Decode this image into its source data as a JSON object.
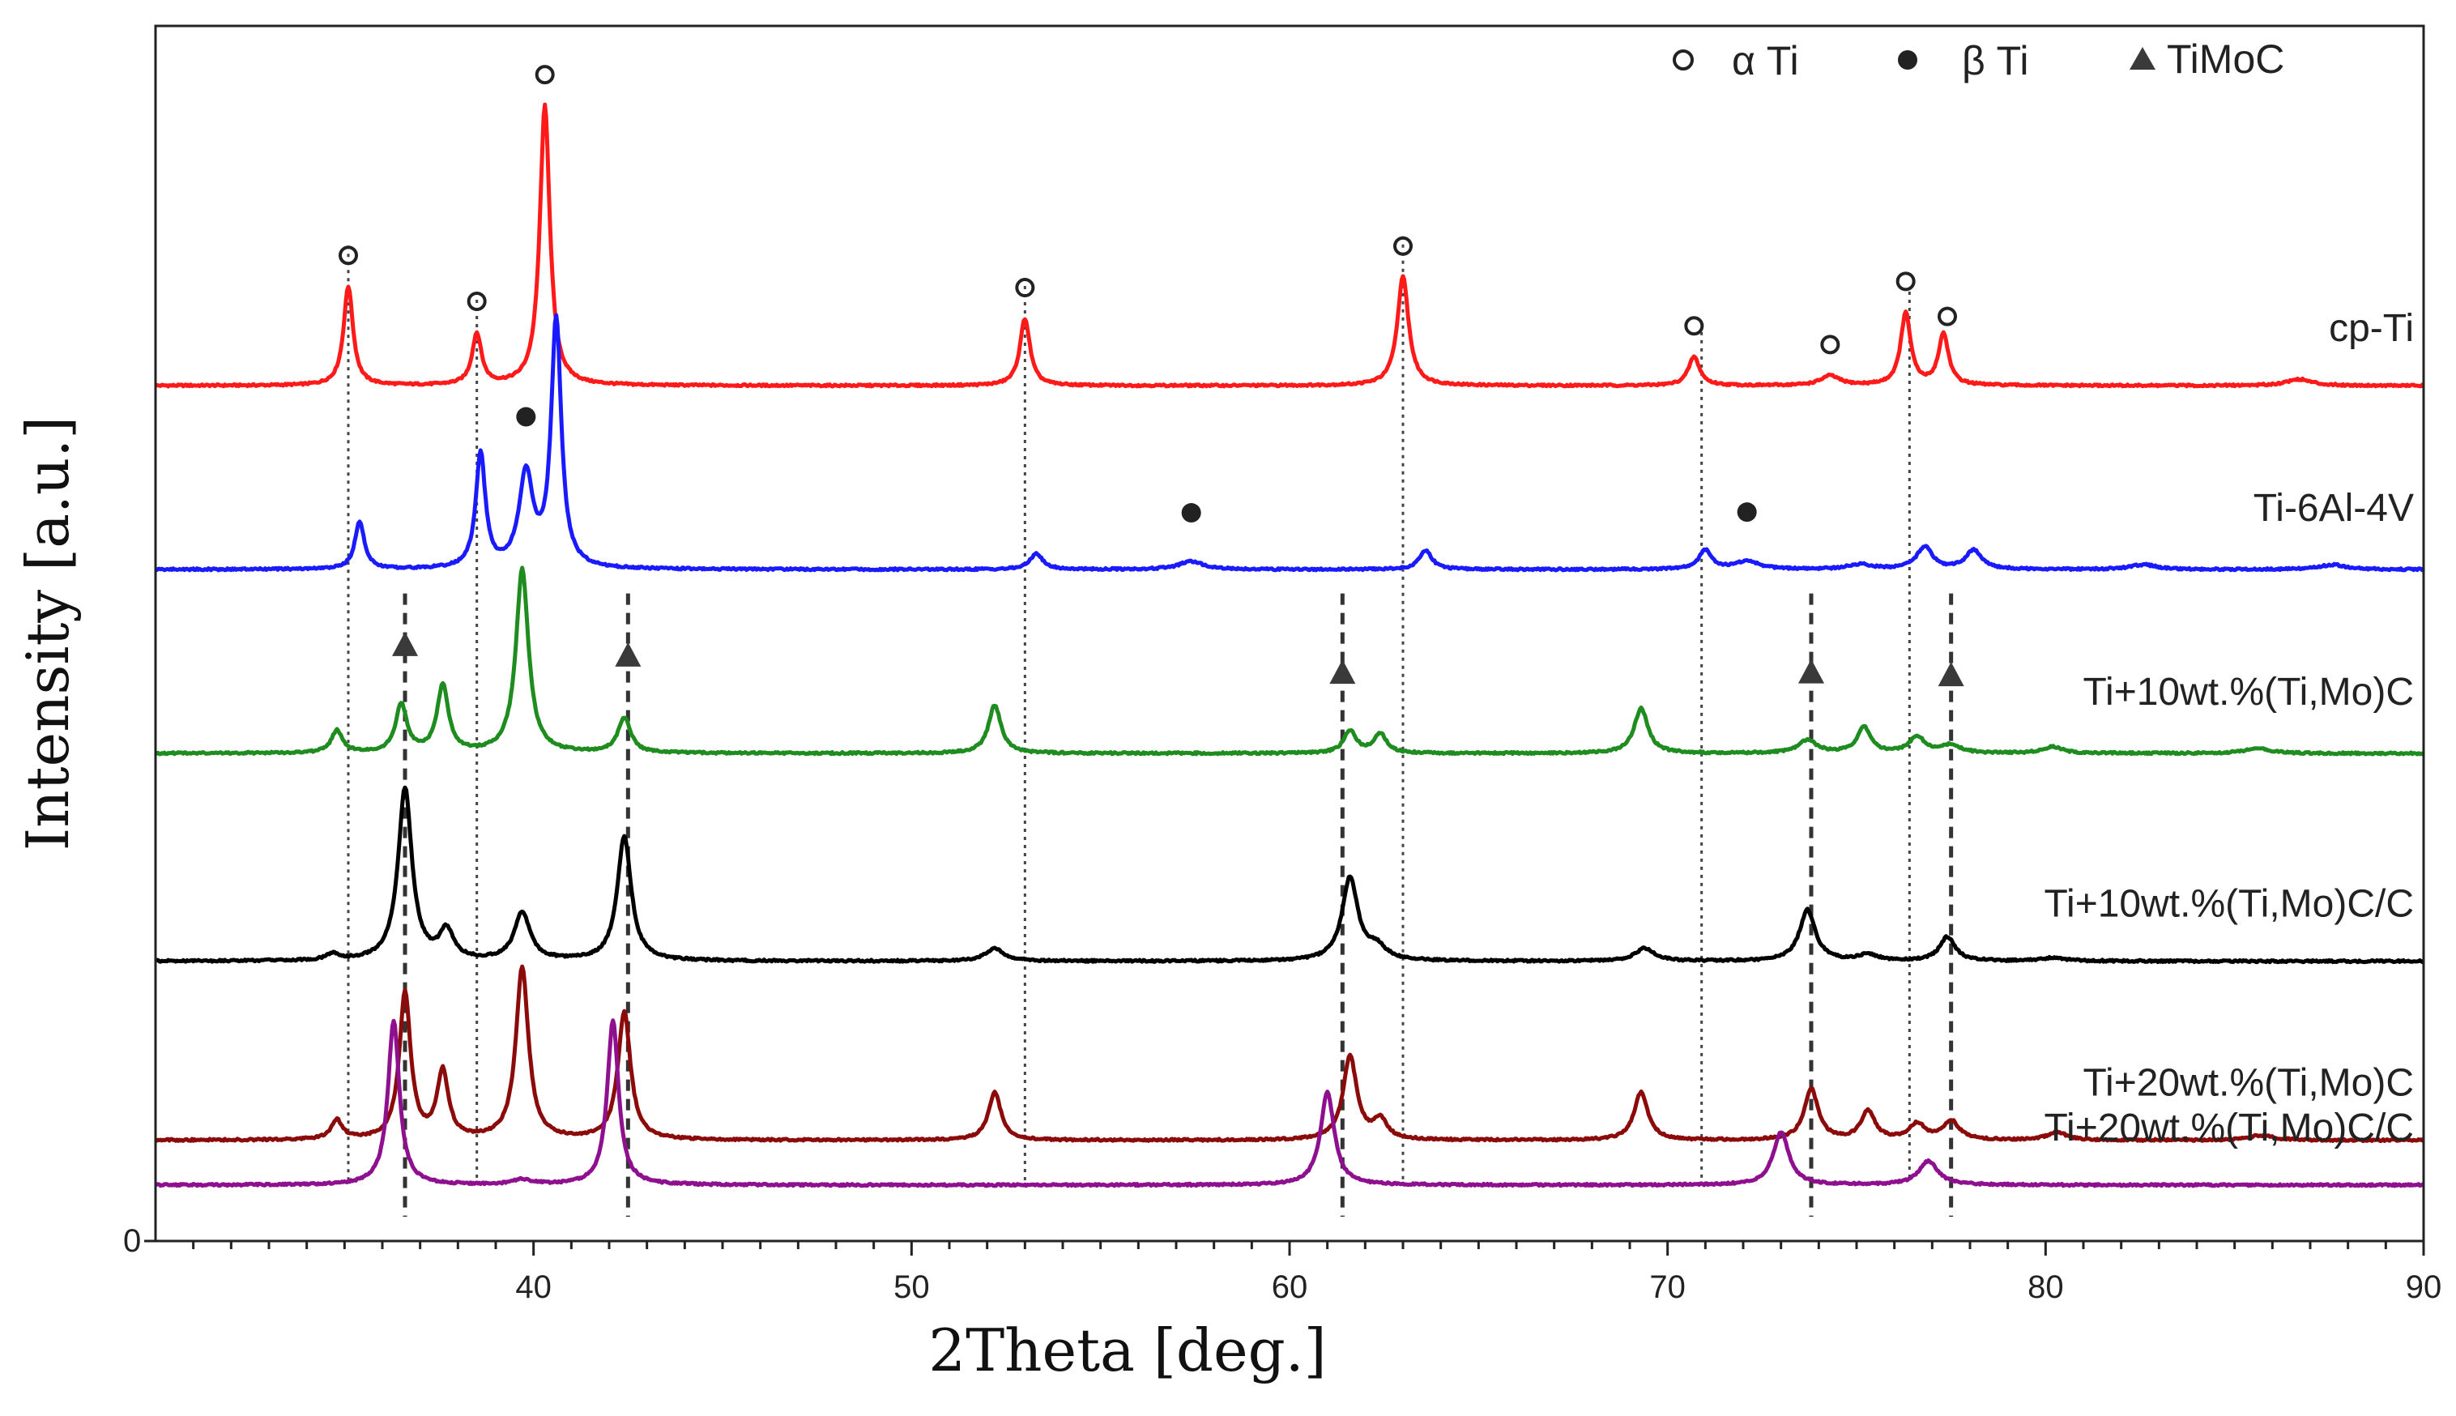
{
  "colors": {
    "cp-Ti": "#ff1a1a",
    "Ti-6Al-4V": "#1a1aff",
    "Ti+10wt.%(Ti,Mo)C": "#1f8c1f",
    "Ti+10wt.%(Ti,Mo)C/C": "#000000",
    "Ti+20wt.%(Ti,Mo)C": "#8b0b0b",
    "Ti+20wt.%(Ti,Mo)C/C": "#8e108e",
    "marker": "#222222"
  },
  "chart_data": {
    "type": "line",
    "title": "",
    "xlabel": "2Theta [deg.]",
    "ylabel": "Intensity [a.u.]",
    "xlim": [
      30,
      90
    ],
    "xticks": [
      40,
      50,
      60,
      70,
      80,
      90
    ],
    "xtick_labels": [
      "40",
      "50",
      "60",
      "70",
      "80",
      "90"
    ],
    "y_zero_label": "0",
    "legend": {
      "placement": "top-right",
      "entries": [
        {
          "marker": "open-circle",
          "label": "α Ti"
        },
        {
          "marker": "filled-circle",
          "label": "β Ti"
        },
        {
          "marker": "triangle",
          "label": "TiMoC"
        }
      ]
    },
    "series": [
      {
        "name": "cp-Ti",
        "label": "cp-Ti",
        "baseline": 5.35,
        "peaks": [
          [
            35.1,
            0.62,
            0.15
          ],
          [
            38.5,
            0.32,
            0.15
          ],
          [
            40.3,
            1.75,
            0.16
          ],
          [
            53.0,
            0.42,
            0.16
          ],
          [
            63.0,
            0.68,
            0.18
          ],
          [
            70.7,
            0.18,
            0.18
          ],
          [
            74.3,
            0.06,
            0.3
          ],
          [
            76.3,
            0.45,
            0.16
          ],
          [
            77.3,
            0.32,
            0.16
          ],
          [
            86.7,
            0.04,
            0.4
          ]
        ]
      },
      {
        "name": "Ti-6Al-4V",
        "label": "Ti-6Al-4V",
        "baseline": 4.2,
        "peaks": [
          [
            35.4,
            0.3,
            0.15
          ],
          [
            38.6,
            0.72,
            0.15
          ],
          [
            39.8,
            0.58,
            0.22
          ],
          [
            40.6,
            1.55,
            0.16
          ],
          [
            53.3,
            0.1,
            0.2
          ],
          [
            57.4,
            0.05,
            0.4
          ],
          [
            63.6,
            0.12,
            0.2
          ],
          [
            71.0,
            0.12,
            0.2
          ],
          [
            72.1,
            0.05,
            0.4
          ],
          [
            75.1,
            0.03,
            0.4
          ],
          [
            76.8,
            0.14,
            0.25
          ],
          [
            78.1,
            0.12,
            0.25
          ],
          [
            82.6,
            0.03,
            0.4
          ],
          [
            87.6,
            0.03,
            0.4
          ]
        ]
      },
      {
        "name": "Ti+10wt.%(Ti,Mo)C",
        "label": "Ti+10wt.%(Ti,Mo)C",
        "baseline": 3.05,
        "peaks": [
          [
            34.8,
            0.14,
            0.18
          ],
          [
            36.5,
            0.3,
            0.18
          ],
          [
            37.6,
            0.42,
            0.18
          ],
          [
            39.7,
            1.15,
            0.2
          ],
          [
            42.4,
            0.22,
            0.2
          ],
          [
            52.2,
            0.3,
            0.2
          ],
          [
            61.6,
            0.14,
            0.2
          ],
          [
            62.4,
            0.12,
            0.2
          ],
          [
            69.3,
            0.28,
            0.22
          ],
          [
            73.7,
            0.08,
            0.3
          ],
          [
            75.2,
            0.16,
            0.22
          ],
          [
            76.6,
            0.1,
            0.25
          ],
          [
            77.5,
            0.05,
            0.3
          ],
          [
            80.2,
            0.04,
            0.3
          ],
          [
            85.6,
            0.03,
            0.4
          ]
        ]
      },
      {
        "name": "Ti+10wt.%(Ti,Mo)C/C",
        "label": "Ti+10wt.%(Ti,Mo)C/C",
        "baseline": 1.75,
        "peaks": [
          [
            34.7,
            0.04,
            0.2
          ],
          [
            36.6,
            1.08,
            0.22
          ],
          [
            37.7,
            0.18,
            0.22
          ],
          [
            39.7,
            0.3,
            0.25
          ],
          [
            42.4,
            0.78,
            0.22
          ],
          [
            52.2,
            0.08,
            0.3
          ],
          [
            61.6,
            0.52,
            0.25
          ],
          [
            62.3,
            0.08,
            0.3
          ],
          [
            69.4,
            0.08,
            0.3
          ],
          [
            73.7,
            0.32,
            0.25
          ],
          [
            75.3,
            0.04,
            0.3
          ],
          [
            77.4,
            0.15,
            0.25
          ],
          [
            80.2,
            0.02,
            0.4
          ]
        ]
      },
      {
        "name": "Ti+20wt.%(Ti,Mo)C",
        "label": "Ti+20wt.%(Ti,Mo)C",
        "baseline": 0.63,
        "peaks": [
          [
            34.8,
            0.12,
            0.18
          ],
          [
            36.6,
            0.92,
            0.18
          ],
          [
            37.6,
            0.42,
            0.18
          ],
          [
            39.7,
            1.08,
            0.2
          ],
          [
            42.4,
            0.8,
            0.2
          ],
          [
            52.2,
            0.3,
            0.2
          ],
          [
            61.6,
            0.52,
            0.22
          ],
          [
            62.4,
            0.12,
            0.22
          ],
          [
            69.3,
            0.3,
            0.22
          ],
          [
            73.8,
            0.32,
            0.22
          ],
          [
            75.3,
            0.18,
            0.22
          ],
          [
            76.6,
            0.1,
            0.25
          ],
          [
            77.5,
            0.12,
            0.25
          ],
          [
            80.3,
            0.05,
            0.3
          ],
          [
            85.7,
            0.03,
            0.4
          ]
        ]
      },
      {
        "name": "Ti+20wt.%(Ti,Mo)C/C",
        "label": "Ti+20wt.%(Ti,Mo)C/C",
        "baseline": 0.35,
        "peaks": [
          [
            36.3,
            1.03,
            0.18
          ],
          [
            39.7,
            0.03,
            0.3
          ],
          [
            42.1,
            1.03,
            0.18
          ],
          [
            61.0,
            0.58,
            0.22
          ],
          [
            73.0,
            0.33,
            0.25
          ],
          [
            76.9,
            0.15,
            0.3
          ]
        ]
      }
    ],
    "annotations": {
      "alpha_ti": [
        {
          "x": 35.1,
          "series": "cp-Ti"
        },
        {
          "x": 38.5,
          "series": "cp-Ti"
        },
        {
          "x": 40.3,
          "series": "cp-Ti"
        },
        {
          "x": 53.0,
          "series": "cp-Ti"
        },
        {
          "x": 63.0,
          "series": "cp-Ti"
        },
        {
          "x": 70.7,
          "series": "cp-Ti"
        },
        {
          "x": 74.3,
          "series": "cp-Ti"
        },
        {
          "x": 76.3,
          "series": "cp-Ti"
        },
        {
          "x": 77.4,
          "series": "cp-Ti"
        }
      ],
      "beta_ti": [
        {
          "x": 39.8,
          "series": "Ti-6Al-4V"
        },
        {
          "x": 57.4,
          "series": "Ti-6Al-4V"
        },
        {
          "x": 72.1,
          "series": "Ti-6Al-4V"
        }
      ],
      "timoc": [
        {
          "x": 36.6,
          "series": "Ti+10wt.%(Ti,Mo)C"
        },
        {
          "x": 42.5,
          "series": "Ti+10wt.%(Ti,Mo)C"
        },
        {
          "x": 61.4,
          "series": "Ti+10wt.%(Ti,Mo)C"
        },
        {
          "x": 73.8,
          "series": "Ti+10wt.%(Ti,Mo)C"
        },
        {
          "x": 77.5,
          "series": "Ti+10wt.%(Ti,Mo)C"
        }
      ]
    },
    "reference_lines": {
      "dotted": [
        35.1,
        38.5,
        53.0,
        63.0,
        70.9,
        76.4
      ],
      "dashed": [
        36.6,
        42.5,
        61.4,
        73.8,
        77.5
      ]
    }
  }
}
